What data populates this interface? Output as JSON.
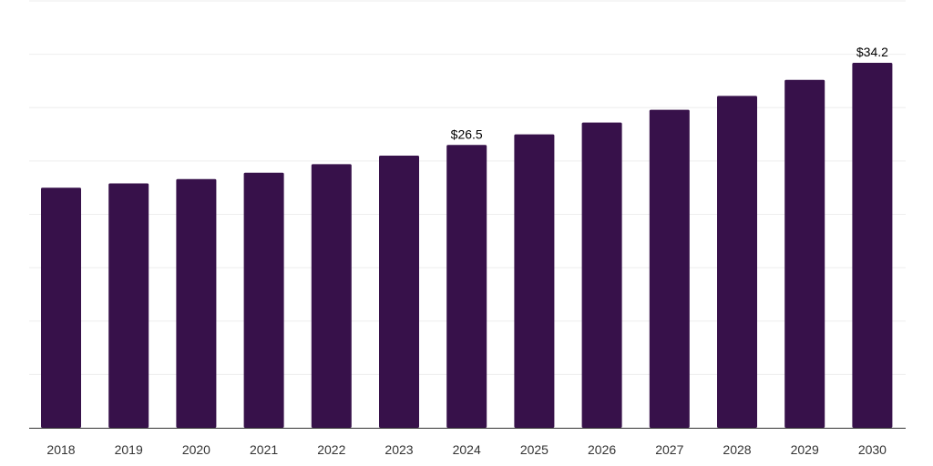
{
  "chart_data": {
    "type": "bar",
    "title": "",
    "xlabel": "",
    "ylabel": "",
    "categories": [
      "2018",
      "2019",
      "2020",
      "2021",
      "2022",
      "2023",
      "2024",
      "2025",
      "2026",
      "2027",
      "2028",
      "2029",
      "2030"
    ],
    "values": [
      22.5,
      22.9,
      23.3,
      23.9,
      24.7,
      25.5,
      26.5,
      27.5,
      28.6,
      29.8,
      31.1,
      32.6,
      34.2
    ],
    "data_labels": [
      {
        "category": "2024",
        "text": "$26.5"
      },
      {
        "category": "2030",
        "text": "$34.2"
      }
    ],
    "ylim": [
      0,
      40
    ],
    "grid": true,
    "legend": "none",
    "bar_color": "#37114a",
    "grid_color": "#eeeeee",
    "axis_color": "#333333"
  }
}
